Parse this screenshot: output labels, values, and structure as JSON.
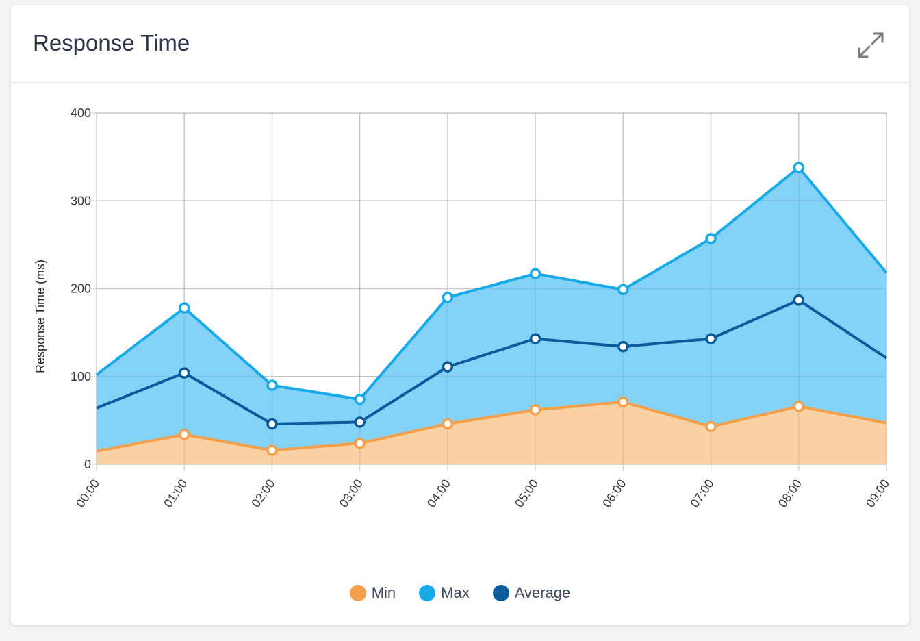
{
  "card": {
    "title": "Response Time"
  },
  "header": {
    "expand_icon": "expand-arrows-icon"
  },
  "colors": {
    "min": "#f59f4a",
    "max": "#17a9e8",
    "average": "#0b5a9c",
    "min_fill": "#f9d1a2",
    "max_fill": "#84d3f7",
    "grid": "#d9d9d9"
  },
  "chart_data": {
    "type": "area",
    "title": "",
    "xlabel": "",
    "ylabel": "Response Time (ms)",
    "ylim": [
      0,
      400
    ],
    "yticks": [
      0,
      100,
      200,
      300,
      400
    ],
    "grid": true,
    "legend_position": "bottom-center",
    "categories": [
      "00:00",
      "01:00",
      "02:00",
      "03:00",
      "04:00",
      "05:00",
      "06:00",
      "07:00",
      "08:00",
      "09:00"
    ],
    "series": [
      {
        "name": "Min",
        "key": "min",
        "values": [
          15,
          34,
          16,
          24,
          46,
          62,
          71,
          43,
          66,
          47
        ]
      },
      {
        "name": "Max",
        "key": "max",
        "values": [
          102,
          178,
          90,
          74,
          190,
          217,
          199,
          257,
          338,
          218
        ]
      },
      {
        "name": "Average",
        "key": "average",
        "values": [
          64,
          104,
          46,
          48,
          111,
          143,
          134,
          143,
          187,
          121
        ]
      }
    ]
  }
}
